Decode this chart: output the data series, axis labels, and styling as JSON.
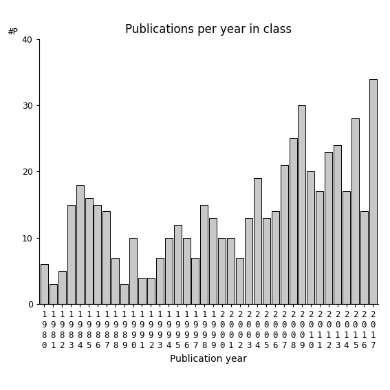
{
  "title": "Publications per year in class",
  "xlabel": "Publication year",
  "ylabel": "#P",
  "years": [
    1980,
    1981,
    1982,
    1983,
    1984,
    1985,
    1986,
    1987,
    1988,
    1989,
    1990,
    1991,
    1992,
    1993,
    1994,
    1995,
    1996,
    1997,
    1998,
    1999,
    2000,
    2001,
    2002,
    2003,
    2004,
    2005,
    2006,
    2007,
    2008,
    2009,
    2010,
    2011,
    2012,
    2013,
    2014,
    2015,
    2016,
    2017
  ],
  "values": [
    6,
    3,
    5,
    15,
    18,
    16,
    15,
    14,
    7,
    3,
    10,
    4,
    4,
    7,
    10,
    12,
    10,
    7,
    15,
    13,
    10,
    10,
    7,
    13,
    19,
    13,
    14,
    21,
    25,
    30,
    20,
    17,
    23,
    24,
    17,
    28,
    14,
    34
  ],
  "bar_color": "#c8c8c8",
  "bar_edge_color": "#000000",
  "ylim": [
    0,
    40
  ],
  "yticks": [
    0,
    10,
    20,
    30,
    40
  ],
  "bg_color": "#ffffff",
  "title_fontsize": 12,
  "label_fontsize": 10,
  "tick_fontsize": 9
}
